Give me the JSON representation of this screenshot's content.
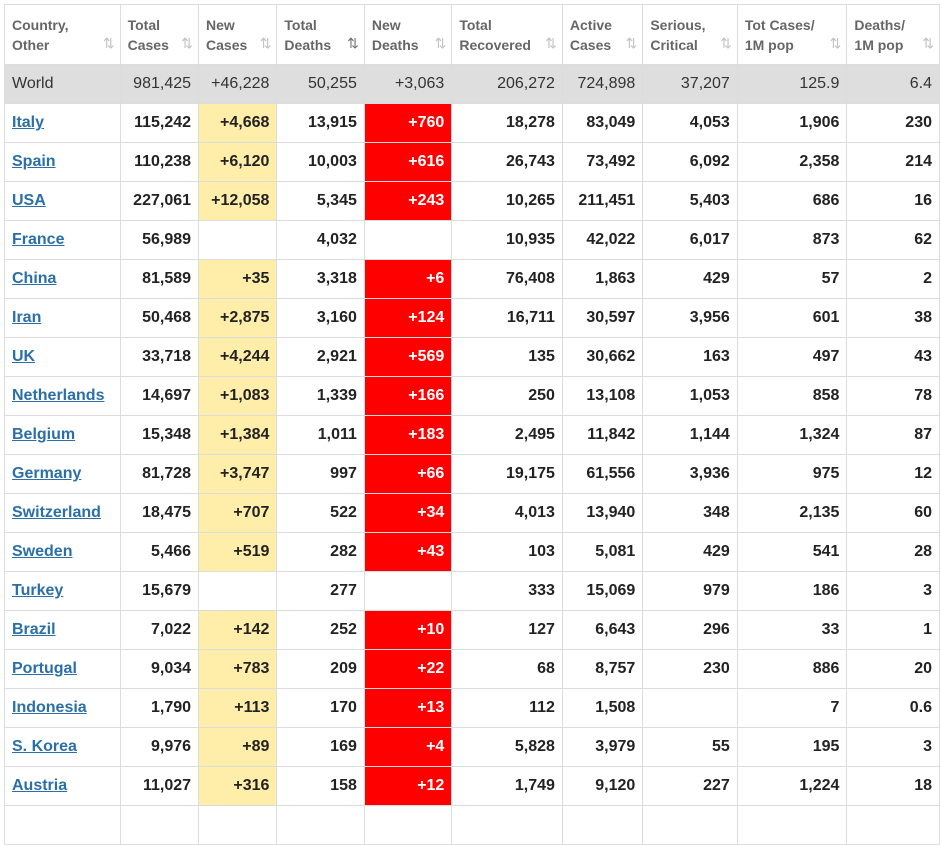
{
  "headers": [
    {
      "line1": "Country,",
      "line2": "Other"
    },
    {
      "line1": "Total",
      "line2": "Cases"
    },
    {
      "line1": "New",
      "line2": "Cases"
    },
    {
      "line1": "Total",
      "line2": "Deaths"
    },
    {
      "line1": "New",
      "line2": "Deaths"
    },
    {
      "line1": "Total",
      "line2": "Recovered"
    },
    {
      "line1": "Active",
      "line2": "Cases"
    },
    {
      "line1": "Serious,",
      "line2": "Critical"
    },
    {
      "line1": "Tot Cases/",
      "line2": "1M pop"
    },
    {
      "line1": "Deaths/",
      "line2": "1M pop"
    }
  ],
  "sort_icons": [
    "⇅",
    "⇅",
    "⇅",
    "⇅",
    "⇅",
    "⇅",
    "⇅",
    "⇅",
    "⇅",
    "⇅"
  ],
  "sort_active_column": 3,
  "colors": {
    "new_cases_bg": "#ffeeaa",
    "new_deaths_bg": "#ff0000",
    "world_bg": "#dedede",
    "link": "#2a6fa8"
  },
  "world": [
    "World",
    "981,425",
    "+46,228",
    "50,255",
    "+3,063",
    "206,272",
    "724,898",
    "37,207",
    "125.9",
    "6.4"
  ],
  "rows": [
    [
      "Italy",
      "115,242",
      "+4,668",
      "13,915",
      "+760",
      "18,278",
      "83,049",
      "4,053",
      "1,906",
      "230"
    ],
    [
      "Spain",
      "110,238",
      "+6,120",
      "10,003",
      "+616",
      "26,743",
      "73,492",
      "6,092",
      "2,358",
      "214"
    ],
    [
      "USA",
      "227,061",
      "+12,058",
      "5,345",
      "+243",
      "10,265",
      "211,451",
      "5,403",
      "686",
      "16"
    ],
    [
      "France",
      "56,989",
      "",
      "4,032",
      "",
      "10,935",
      "42,022",
      "6,017",
      "873",
      "62"
    ],
    [
      "China",
      "81,589",
      "+35",
      "3,318",
      "+6",
      "76,408",
      "1,863",
      "429",
      "57",
      "2"
    ],
    [
      "Iran",
      "50,468",
      "+2,875",
      "3,160",
      "+124",
      "16,711",
      "30,597",
      "3,956",
      "601",
      "38"
    ],
    [
      "UK",
      "33,718",
      "+4,244",
      "2,921",
      "+569",
      "135",
      "30,662",
      "163",
      "497",
      "43"
    ],
    [
      "Netherlands",
      "14,697",
      "+1,083",
      "1,339",
      "+166",
      "250",
      "13,108",
      "1,053",
      "858",
      "78"
    ],
    [
      "Belgium",
      "15,348",
      "+1,384",
      "1,011",
      "+183",
      "2,495",
      "11,842",
      "1,144",
      "1,324",
      "87"
    ],
    [
      "Germany",
      "81,728",
      "+3,747",
      "997",
      "+66",
      "19,175",
      "61,556",
      "3,936",
      "975",
      "12"
    ],
    [
      "Switzerland",
      "18,475",
      "+707",
      "522",
      "+34",
      "4,013",
      "13,940",
      "348",
      "2,135",
      "60"
    ],
    [
      "Sweden",
      "5,466",
      "+519",
      "282",
      "+43",
      "103",
      "5,081",
      "429",
      "541",
      "28"
    ],
    [
      "Turkey",
      "15,679",
      "",
      "277",
      "",
      "333",
      "15,069",
      "979",
      "186",
      "3"
    ],
    [
      "Brazil",
      "7,022",
      "+142",
      "252",
      "+10",
      "127",
      "6,643",
      "296",
      "33",
      "1"
    ],
    [
      "Portugal",
      "9,034",
      "+783",
      "209",
      "+22",
      "68",
      "8,757",
      "230",
      "886",
      "20"
    ],
    [
      "Indonesia",
      "1,790",
      "+113",
      "170",
      "+13",
      "112",
      "1,508",
      "",
      "7",
      "0.6"
    ],
    [
      "S. Korea",
      "9,976",
      "+89",
      "169",
      "+4",
      "5,828",
      "3,979",
      "55",
      "195",
      "3"
    ],
    [
      "Austria",
      "11,027",
      "+316",
      "158",
      "+12",
      "1,749",
      "9,120",
      "227",
      "1,224",
      "18"
    ],
    [
      "",
      "",
      "",
      "",
      "",
      "",
      "",
      "",
      "",
      ""
    ]
  ]
}
